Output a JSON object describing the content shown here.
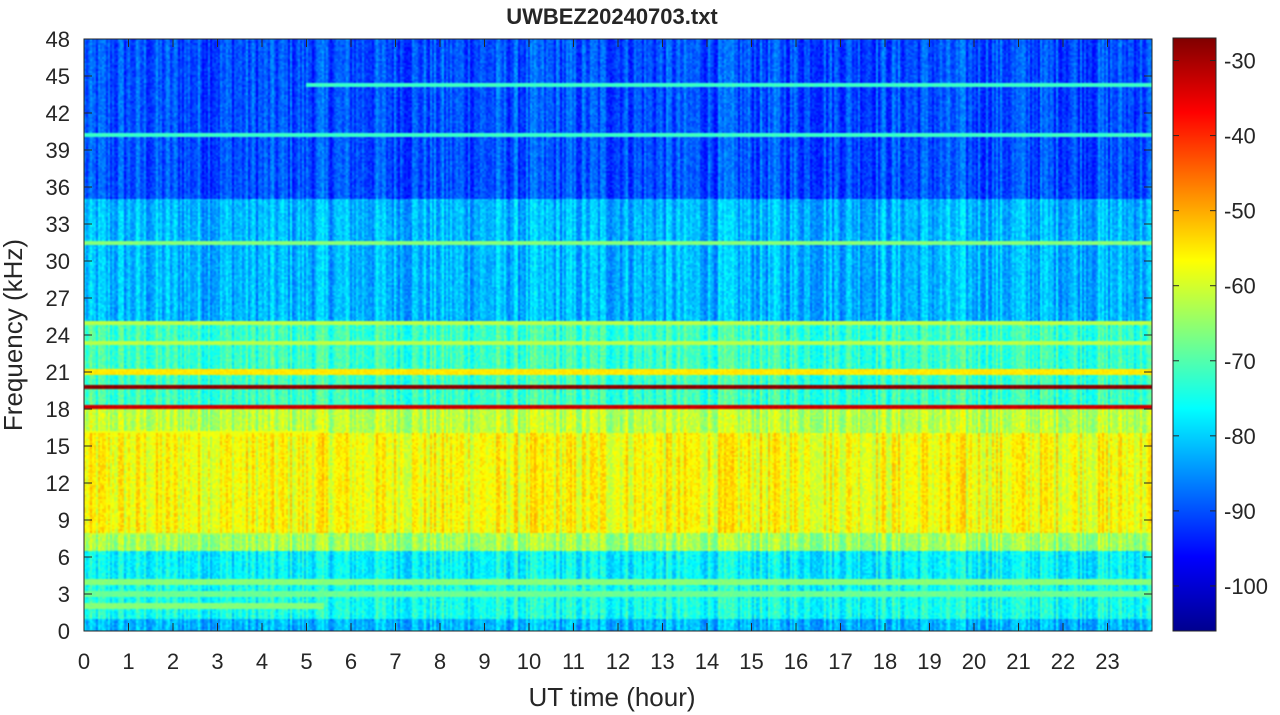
{
  "chart_data": {
    "type": "heatmap",
    "title": "UWBEZ20240703.txt",
    "xlabel": "UT time (hour)",
    "ylabel": "Frequency (kHz)",
    "xlim": [
      0,
      24
    ],
    "ylim": [
      0,
      48
    ],
    "x_ticks": [
      0,
      1,
      2,
      3,
      4,
      5,
      6,
      7,
      8,
      9,
      10,
      11,
      12,
      13,
      14,
      15,
      16,
      17,
      18,
      19,
      20,
      21,
      22,
      23
    ],
    "y_ticks": [
      0,
      3,
      6,
      9,
      12,
      15,
      18,
      21,
      24,
      27,
      30,
      33,
      36,
      39,
      42,
      45,
      48
    ],
    "colorbar": {
      "colormap": "jet",
      "range": [
        -106,
        -27
      ],
      "ticks": [
        -30,
        -40,
        -50,
        -60,
        -70,
        -80,
        -90,
        -100
      ]
    },
    "background_level_by_frequency": [
      {
        "f_min": 0,
        "f_max": 1,
        "level": -82
      },
      {
        "f_min": 1,
        "f_max": 4,
        "level": -75
      },
      {
        "f_min": 4,
        "f_max": 6.5,
        "level": -77
      },
      {
        "f_min": 6.5,
        "f_max": 8,
        "level": -64
      },
      {
        "f_min": 8,
        "f_max": 16,
        "level": -57
      },
      {
        "f_min": 16,
        "f_max": 18,
        "level": -62
      },
      {
        "f_min": 18,
        "f_max": 25,
        "level": -72
      },
      {
        "f_min": 25,
        "f_max": 35,
        "level": -82
      },
      {
        "f_min": 35,
        "f_max": 48,
        "level": -90
      }
    ],
    "narrowband_lines": [
      {
        "frequency": 19.8,
        "level": -28,
        "t_start": 0,
        "t_end": 24
      },
      {
        "frequency": 18.2,
        "level": -33,
        "t_start": 0,
        "t_end": 24
      },
      {
        "frequency": 25.0,
        "level": -62,
        "t_start": 0,
        "t_end": 24
      },
      {
        "frequency": 23.4,
        "level": -62,
        "t_start": 0,
        "t_end": 24
      },
      {
        "frequency": 21.0,
        "level": -55,
        "t_start": 0,
        "t_end": 24
      },
      {
        "frequency": 31.5,
        "level": -66,
        "t_start": 0,
        "t_end": 24
      },
      {
        "frequency": 44.3,
        "level": -72,
        "t_start": 5,
        "t_end": 24
      },
      {
        "frequency": 40.2,
        "level": -72,
        "t_start": 0,
        "t_end": 24
      },
      {
        "frequency": 4.0,
        "level": -66,
        "t_start": 0,
        "t_end": 24
      },
      {
        "frequency": 3.0,
        "level": -68,
        "t_start": 0,
        "t_end": 24
      },
      {
        "frequency": 2.0,
        "level": -66,
        "t_start": 0,
        "t_end": 5.4
      },
      {
        "frequency": 8.0,
        "level": -64,
        "t_start": 0,
        "t_end": 5.4
      },
      {
        "frequency": 16.0,
        "level": -58,
        "t_start": 0,
        "t_end": 5.4
      }
    ]
  }
}
